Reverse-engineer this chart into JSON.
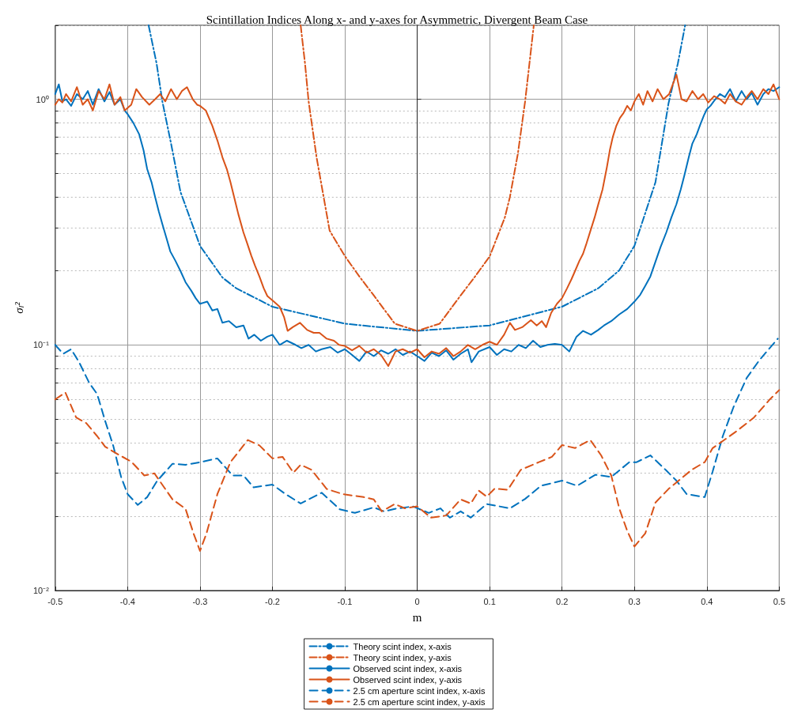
{
  "chart_data": {
    "type": "line",
    "title": "Scintillation Indices Along x- and y-axes for Asymmetric, Divergent Beam Case",
    "xlabel": "m",
    "ylabel": "σ$_{I}$²",
    "xlim": [
      -0.5,
      0.5
    ],
    "xticks": [
      -0.5,
      -0.4,
      -0.3,
      -0.2,
      -0.1,
      0,
      0.1,
      0.2,
      0.3,
      0.4,
      0.5
    ],
    "ylim": [
      0.01,
      2
    ],
    "log": "y",
    "yticks": [
      {
        "value": 0.01,
        "label": "10⁻²"
      },
      {
        "value": 0.02,
        "label": null
      },
      {
        "value": 0.03,
        "label": null
      },
      {
        "value": 0.04,
        "label": null
      },
      {
        "value": 0.05,
        "label": null
      },
      {
        "value": 0.06,
        "label": null
      },
      {
        "value": 0.07,
        "label": null
      },
      {
        "value": 0.08,
        "label": null
      },
      {
        "value": 0.09,
        "label": null
      },
      {
        "value": 0.1,
        "label": "10⁻¹"
      },
      {
        "value": 0.2,
        "label": null
      },
      {
        "value": 0.3,
        "label": null
      },
      {
        "value": 0.4,
        "label": null
      },
      {
        "value": 0.5,
        "label": null
      },
      {
        "value": 0.6,
        "label": null
      },
      {
        "value": 0.7,
        "label": null
      },
      {
        "value": 0.8,
        "label": null
      },
      {
        "value": 0.9,
        "label": null
      },
      {
        "value": 1,
        "label": "10⁰"
      },
      {
        "value": 2,
        "label": null
      }
    ],
    "grid": true,
    "legend": "bottom",
    "marker": "none",
    "series": [
      {
        "name": "Theory scint index, x-axis",
        "color": "#0072bd",
        "line_style": "dashdot",
        "x": [
          -0.371,
          -0.36,
          -0.352,
          -0.34,
          -0.327,
          -0.3,
          -0.269,
          -0.25,
          -0.2,
          -0.1,
          0,
          0.1,
          0.2,
          0.25,
          0.279,
          0.3,
          0.329,
          0.347,
          0.36,
          0.37
        ],
        "values": [
          2,
          1.4,
          0.98,
          0.66,
          0.42,
          0.253,
          0.188,
          0.17,
          0.143,
          0.122,
          0.114,
          0.12,
          0.143,
          0.17,
          0.201,
          0.253,
          0.459,
          0.96,
          1.4,
          2
        ]
      },
      {
        "name": "Theory scint index, y-axis",
        "color": "#d95319",
        "line_style": "dashdot",
        "x": [
          -0.161,
          -0.155,
          -0.15,
          -0.139,
          -0.121,
          -0.1,
          -0.08,
          -0.06,
          -0.031,
          0,
          0.031,
          0.06,
          0.08,
          0.1,
          0.121,
          0.128,
          0.139,
          0.149,
          0.155,
          0.161
        ],
        "values": [
          2,
          1.4,
          0.98,
          0.58,
          0.292,
          0.23,
          0.19,
          0.159,
          0.122,
          0.114,
          0.122,
          0.159,
          0.19,
          0.229,
          0.33,
          0.4,
          0.6,
          0.98,
          1.4,
          2
        ]
      },
      {
        "name": "Observed scint index, x-axis",
        "color": "#0072bd",
        "line_style": "solid",
        "x": [
          -0.5,
          -0.495,
          -0.49,
          -0.485,
          -0.478,
          -0.47,
          -0.462,
          -0.455,
          -0.448,
          -0.44,
          -0.432,
          -0.425,
          -0.418,
          -0.41,
          -0.404,
          -0.4,
          -0.392,
          -0.384,
          -0.378,
          -0.373,
          -0.367,
          -0.362,
          -0.357,
          -0.352,
          -0.346,
          -0.341,
          -0.334,
          -0.327,
          -0.32,
          -0.312,
          -0.306,
          -0.3,
          -0.29,
          -0.283,
          -0.276,
          -0.269,
          -0.26,
          -0.25,
          -0.24,
          -0.233,
          -0.225,
          -0.216,
          -0.207,
          -0.2,
          -0.19,
          -0.18,
          -0.168,
          -0.16,
          -0.15,
          -0.14,
          -0.132,
          -0.12,
          -0.11,
          -0.1,
          -0.09,
          -0.08,
          -0.07,
          -0.06,
          -0.05,
          -0.04,
          -0.03,
          -0.02,
          -0.01,
          0,
          0.01,
          0.02,
          0.03,
          0.04,
          0.05,
          0.06,
          0.07,
          0.075,
          0.085,
          0.1,
          0.11,
          0.12,
          0.13,
          0.14,
          0.15,
          0.16,
          0.17,
          0.18,
          0.19,
          0.2,
          0.21,
          0.22,
          0.229,
          0.24,
          0.25,
          0.258,
          0.268,
          0.279,
          0.29,
          0.3,
          0.308,
          0.315,
          0.322,
          0.329,
          0.336,
          0.344,
          0.351,
          0.358,
          0.364,
          0.369,
          0.375,
          0.38,
          0.386,
          0.391,
          0.396,
          0.4,
          0.405,
          0.41,
          0.418,
          0.425,
          0.432,
          0.44,
          0.448,
          0.455,
          0.462,
          0.47,
          0.478,
          0.485,
          0.492,
          0.5
        ],
        "values": [
          1.05,
          1.15,
          0.98,
          1.0,
          0.94,
          1.05,
          1.0,
          1.08,
          0.95,
          1.1,
          0.98,
          1.07,
          0.95,
          1.0,
          0.9,
          0.87,
          0.8,
          0.72,
          0.62,
          0.52,
          0.46,
          0.4,
          0.35,
          0.31,
          0.27,
          0.24,
          0.22,
          0.2,
          0.18,
          0.166,
          0.155,
          0.147,
          0.15,
          0.138,
          0.14,
          0.123,
          0.125,
          0.118,
          0.12,
          0.106,
          0.11,
          0.104,
          0.108,
          0.11,
          0.1,
          0.104,
          0.1,
          0.097,
          0.1,
          0.094,
          0.096,
          0.098,
          0.093,
          0.096,
          0.091,
          0.086,
          0.094,
          0.09,
          0.095,
          0.092,
          0.096,
          0.091,
          0.094,
          0.09,
          0.086,
          0.093,
          0.09,
          0.095,
          0.087,
          0.092,
          0.096,
          0.085,
          0.094,
          0.098,
          0.091,
          0.096,
          0.094,
          0.1,
          0.097,
          0.104,
          0.098,
          0.1,
          0.101,
          0.1,
          0.094,
          0.108,
          0.114,
          0.11,
          0.115,
          0.12,
          0.125,
          0.133,
          0.14,
          0.15,
          0.16,
          0.174,
          0.19,
          0.218,
          0.25,
          0.287,
          0.33,
          0.374,
          0.43,
          0.49,
          0.58,
          0.66,
          0.72,
          0.79,
          0.86,
          0.91,
          0.94,
          0.985,
          1.05,
          1.02,
          1.1,
          0.98,
          1.08,
          1.0,
          1.06,
          0.95,
          1.05,
          1.1,
          1.08,
          1.12
        ]
      },
      {
        "name": "Observed scint index, y-axis",
        "color": "#d95319",
        "line_style": "solid",
        "x": [
          -0.5,
          -0.495,
          -0.49,
          -0.485,
          -0.478,
          -0.47,
          -0.462,
          -0.455,
          -0.448,
          -0.44,
          -0.432,
          -0.425,
          -0.418,
          -0.41,
          -0.404,
          -0.395,
          -0.388,
          -0.38,
          -0.37,
          -0.362,
          -0.355,
          -0.348,
          -0.34,
          -0.332,
          -0.325,
          -0.318,
          -0.31,
          -0.304,
          -0.3,
          -0.292,
          -0.283,
          -0.276,
          -0.269,
          -0.263,
          -0.258,
          -0.252,
          -0.247,
          -0.24,
          -0.235,
          -0.229,
          -0.224,
          -0.218,
          -0.212,
          -0.207,
          -0.198,
          -0.19,
          -0.184,
          -0.179,
          -0.172,
          -0.162,
          -0.152,
          -0.143,
          -0.135,
          -0.125,
          -0.115,
          -0.108,
          -0.1,
          -0.09,
          -0.08,
          -0.07,
          -0.06,
          -0.05,
          -0.04,
          -0.03,
          -0.02,
          -0.01,
          0,
          0.01,
          0.02,
          0.03,
          0.04,
          0.05,
          0.06,
          0.07,
          0.08,
          0.09,
          0.1,
          0.11,
          0.12,
          0.128,
          0.135,
          0.145,
          0.157,
          0.165,
          0.172,
          0.178,
          0.185,
          0.193,
          0.2,
          0.207,
          0.213,
          0.218,
          0.224,
          0.229,
          0.234,
          0.239,
          0.245,
          0.25,
          0.256,
          0.262,
          0.266,
          0.27,
          0.275,
          0.28,
          0.285,
          0.29,
          0.295,
          0.3,
          0.306,
          0.312,
          0.318,
          0.325,
          0.332,
          0.34,
          0.348,
          0.358,
          0.365,
          0.372,
          0.38,
          0.388,
          0.395,
          0.402,
          0.41,
          0.418,
          0.425,
          0.432,
          0.44,
          0.448,
          0.455,
          0.462,
          0.47,
          0.478,
          0.485,
          0.492,
          0.5
        ],
        "values": [
          0.95,
          1.0,
          0.97,
          1.05,
          0.98,
          1.12,
          0.95,
          1.0,
          0.9,
          1.08,
          1.0,
          1.15,
          0.95,
          1.02,
          0.9,
          0.95,
          1.1,
          1.02,
          0.95,
          1.0,
          1.05,
          0.98,
          1.1,
          1.0,
          1.08,
          1.12,
          1.0,
          0.95,
          0.94,
          0.9,
          0.78,
          0.68,
          0.58,
          0.52,
          0.46,
          0.39,
          0.34,
          0.287,
          0.26,
          0.23,
          0.21,
          0.19,
          0.17,
          0.158,
          0.15,
          0.143,
          0.13,
          0.114,
          0.118,
          0.123,
          0.115,
          0.112,
          0.112,
          0.106,
          0.104,
          0.1,
          0.099,
          0.095,
          0.099,
          0.093,
          0.096,
          0.091,
          0.082,
          0.094,
          0.096,
          0.093,
          0.096,
          0.089,
          0.094,
          0.092,
          0.097,
          0.09,
          0.094,
          0.1,
          0.096,
          0.1,
          0.103,
          0.1,
          0.11,
          0.123,
          0.115,
          0.118,
          0.126,
          0.12,
          0.125,
          0.118,
          0.135,
          0.147,
          0.155,
          0.17,
          0.185,
          0.2,
          0.22,
          0.235,
          0.26,
          0.29,
          0.33,
          0.373,
          0.43,
          0.53,
          0.62,
          0.7,
          0.78,
          0.84,
          0.88,
          0.94,
          0.9,
          0.98,
          1.05,
          0.95,
          1.08,
          0.98,
          1.1,
          1.0,
          1.05,
          1.26,
          1.0,
          0.98,
          1.08,
          1.0,
          1.05,
          0.97,
          1.03,
          1.0,
          0.96,
          1.05,
          0.98,
          0.95,
          1.02,
          1.08,
          1.0,
          1.1,
          1.05,
          1.15,
          1.0
        ]
      },
      {
        "name": "2.5 cm aperture scint index, x-axis",
        "color": "#0072bd",
        "line_style": "dashed",
        "x": [
          -0.5,
          -0.489,
          -0.478,
          -0.467,
          -0.453,
          -0.442,
          -0.431,
          -0.42,
          -0.409,
          -0.4,
          -0.386,
          -0.373,
          -0.359,
          -0.338,
          -0.32,
          -0.3,
          -0.276,
          -0.255,
          -0.24,
          -0.226,
          -0.2,
          -0.182,
          -0.161,
          -0.132,
          -0.107,
          -0.086,
          -0.06,
          -0.046,
          -0.031,
          -0.006,
          0.016,
          0.032,
          0.045,
          0.06,
          0.074,
          0.096,
          0.128,
          0.149,
          0.171,
          0.2,
          0.221,
          0.246,
          0.268,
          0.293,
          0.303,
          0.322,
          0.343,
          0.358,
          0.372,
          0.397,
          0.408,
          0.422,
          0.437,
          0.455,
          0.473,
          0.498
        ],
        "values": [
          0.1,
          0.092,
          0.096,
          0.085,
          0.07,
          0.063,
          0.049,
          0.039,
          0.029,
          0.0247,
          0.0223,
          0.024,
          0.028,
          0.0328,
          0.0325,
          0.0333,
          0.0345,
          0.0294,
          0.0294,
          0.0263,
          0.027,
          0.0247,
          0.0226,
          0.025,
          0.0214,
          0.0207,
          0.0218,
          0.021,
          0.0215,
          0.022,
          0.0207,
          0.0216,
          0.0198,
          0.021,
          0.0198,
          0.0225,
          0.0216,
          0.0236,
          0.0267,
          0.028,
          0.0267,
          0.0296,
          0.029,
          0.0333,
          0.0333,
          0.0355,
          0.031,
          0.028,
          0.0247,
          0.024,
          0.0305,
          0.0425,
          0.056,
          0.0733,
          0.087,
          0.106
        ]
      },
      {
        "name": "2.5 cm aperture scint index, y-axis",
        "color": "#d95319",
        "line_style": "dashed",
        "x": [
          -0.5,
          -0.486,
          -0.471,
          -0.457,
          -0.442,
          -0.431,
          -0.413,
          -0.395,
          -0.377,
          -0.363,
          -0.338,
          -0.32,
          -0.309,
          -0.3,
          -0.291,
          -0.276,
          -0.258,
          -0.234,
          -0.218,
          -0.2,
          -0.186,
          -0.171,
          -0.161,
          -0.146,
          -0.125,
          -0.103,
          -0.074,
          -0.06,
          -0.049,
          -0.031,
          -0.017,
          0,
          0.019,
          0.04,
          0.06,
          0.074,
          0.085,
          0.096,
          0.107,
          0.125,
          0.143,
          0.168,
          0.186,
          0.2,
          0.218,
          0.239,
          0.254,
          0.268,
          0.279,
          0.29,
          0.3,
          0.315,
          0.329,
          0.347,
          0.361,
          0.379,
          0.397,
          0.408,
          0.426,
          0.44,
          0.465,
          0.487,
          0.5
        ],
        "values": [
          0.06,
          0.064,
          0.0506,
          0.048,
          0.0425,
          0.0385,
          0.0358,
          0.0335,
          0.0294,
          0.03,
          0.0235,
          0.0215,
          0.0171,
          0.0145,
          0.0171,
          0.0247,
          0.0333,
          0.041,
          0.039,
          0.0345,
          0.035,
          0.0302,
          0.0325,
          0.031,
          0.0259,
          0.0247,
          0.024,
          0.0235,
          0.021,
          0.0225,
          0.0216,
          0.022,
          0.0198,
          0.0202,
          0.0235,
          0.0226,
          0.0255,
          0.0241,
          0.026,
          0.0257,
          0.031,
          0.0333,
          0.035,
          0.0391,
          0.038,
          0.041,
          0.0355,
          0.0294,
          0.0216,
          0.0175,
          0.0151,
          0.0171,
          0.0228,
          0.0259,
          0.028,
          0.031,
          0.0333,
          0.038,
          0.0414,
          0.0443,
          0.0506,
          0.06,
          0.0655
        ]
      }
    ]
  }
}
